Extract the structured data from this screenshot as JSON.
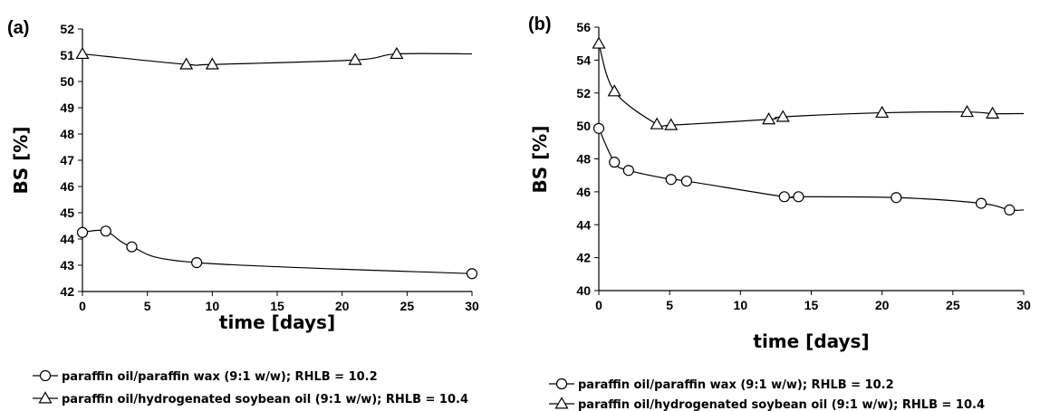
{
  "chart_data": [
    {
      "type": "line",
      "panel_label": "(a)",
      "xlabel": "time [days]",
      "ylabel": "BS [%]",
      "xlim": [
        0,
        30
      ],
      "ylim": [
        42,
        52
      ],
      "xticks": [
        0,
        5,
        10,
        15,
        20,
        25,
        30
      ],
      "yticks": [
        42,
        43,
        44,
        45,
        46,
        47,
        48,
        49,
        50,
        51,
        52
      ],
      "grid": false,
      "legend_position": "bottom",
      "series": [
        {
          "name": "paraffin oil/paraffin wax (9:1 w/w); RHLB = 10.2",
          "marker": "circle",
          "x": [
            0,
            1.8,
            3.8,
            8.8,
            30
          ],
          "y": [
            44.25,
            44.3,
            43.7,
            43.1,
            42.68
          ]
        },
        {
          "name": "paraffin oil/hydrogenated soybean oil (9:1 w/w); RHLB = 10.4",
          "marker": "triangle",
          "x": [
            0,
            8,
            10,
            21,
            24.2
          ],
          "y": [
            51.05,
            50.65,
            50.65,
            50.82,
            51.05
          ]
        }
      ],
      "line_end_x": 30
    },
    {
      "type": "line",
      "panel_label": "(b)",
      "xlabel": "time [days]",
      "ylabel": "BS [%]",
      "xlim": [
        0,
        30
      ],
      "ylim": [
        40,
        56
      ],
      "xticks": [
        0,
        5,
        10,
        15,
        20,
        25,
        30
      ],
      "yticks": [
        40,
        42,
        44,
        46,
        48,
        50,
        52,
        54,
        56
      ],
      "grid": false,
      "legend_position": "bottom",
      "series": [
        {
          "name": "paraffin oil/paraffin wax (9:1 w/w); RHLB = 10.2",
          "marker": "circle",
          "x": [
            0,
            1.1,
            2.1,
            5.1,
            6.2,
            13.1,
            14.1,
            21,
            27,
            29
          ],
          "y": [
            49.85,
            47.8,
            47.3,
            46.75,
            46.65,
            45.7,
            45.7,
            45.65,
            45.3,
            44.9
          ]
        },
        {
          "name": "paraffin oil/hydrogenated soybean oil (9:1 w/w); RHLB = 10.4",
          "marker": "triangle",
          "x": [
            0,
            1.1,
            4.1,
            5.1,
            12,
            13,
            20,
            26,
            27.8
          ],
          "y": [
            55.0,
            52.1,
            50.1,
            50.05,
            50.4,
            50.55,
            50.8,
            50.85,
            50.75
          ]
        }
      ],
      "line_end_x": 30
    }
  ]
}
